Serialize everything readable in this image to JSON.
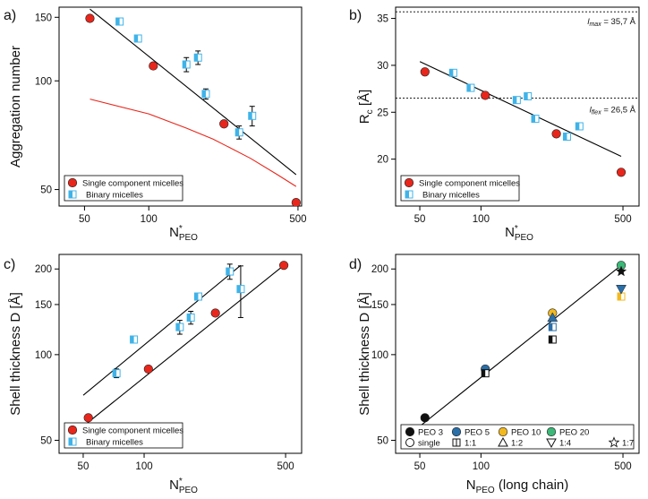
{
  "colors": {
    "single": "#e8261b",
    "binary": "#3fb3e8",
    "binary_light": "#cde9f7",
    "model": "#e8261b",
    "peo3": "#111111",
    "peo5": "#2a6fa8",
    "peo10": "#f2b91f",
    "peo20": "#3cb878"
  },
  "chart_data": [
    {
      "id": "a",
      "panel_label": "a)",
      "type": "scatter",
      "xlabel": "N",
      "xlabel_sup": "*",
      "xlabel_sub": "PEO",
      "ylabel": "Aggregation number",
      "xscale": "log",
      "yscale": "log",
      "xlim": [
        38,
        520
      ],
      "ylim": [
        45,
        160
      ],
      "xticks": [
        50,
        100,
        500
      ],
      "yticks": [
        50,
        100,
        150
      ],
      "legend_position": "lower-left",
      "legend": [
        "Single component micelles",
        "Binary micelles"
      ],
      "series": [
        {
          "name": "Single component micelles",
          "marker": "circle",
          "points": [
            [
              53,
              149
            ],
            [
              105,
              110
            ],
            [
              225,
              76
            ],
            [
              490,
              46
            ]
          ]
        },
        {
          "name": "Binary micelles",
          "marker": "half-square",
          "points": [
            [
              73,
              146,
              2.5
            ],
            [
              89,
              131,
              2.5
            ],
            [
              150,
              111,
              5
            ],
            [
              170,
              116,
              5
            ],
            [
              185,
              92,
              3
            ],
            [
              265,
              72,
              3
            ],
            [
              305,
              80,
              5
            ]
          ]
        }
      ],
      "lines": [
        {
          "name": "fit",
          "style": "black",
          "points": [
            [
              53,
              158
            ],
            [
              490,
              55
            ]
          ]
        },
        {
          "name": "model",
          "style": "red",
          "points": [
            [
              53,
              89
            ],
            [
              100,
              81
            ],
            [
              150,
              74
            ],
            [
              200,
              69
            ],
            [
              300,
              61
            ],
            [
              400,
              55
            ],
            [
              490,
              51
            ]
          ]
        }
      ]
    },
    {
      "id": "b",
      "panel_label": "b)",
      "type": "scatter",
      "xlabel": "N",
      "xlabel_sup": "*",
      "xlabel_sub": "PEO",
      "ylabel": "R",
      "ylabel_sub": "c",
      "ylabel_suffix": " [Å]",
      "xscale": "log",
      "yscale": "linear",
      "xlim": [
        38,
        600
      ],
      "ylim": [
        15,
        36.2
      ],
      "xticks": [
        50,
        100,
        500
      ],
      "yticks": [
        20,
        25,
        30,
        35
      ],
      "legend_position": "lower-left",
      "legend": [
        "Single component micelles",
        "Binary micelles"
      ],
      "series": [
        {
          "name": "Single component micelles",
          "marker": "circle",
          "points": [
            [
              53,
              29.3
            ],
            [
              105,
              26.8
            ],
            [
              235,
              22.7
            ],
            [
              490,
              18.6
            ]
          ]
        },
        {
          "name": "Binary micelles",
          "marker": "half-square",
          "points": [
            [
              73,
              29.2
            ],
            [
              89,
              27.6
            ],
            [
              150,
              26.3
            ],
            [
              170,
              26.7
            ],
            [
              185,
              24.3
            ],
            [
              265,
              22.4
            ],
            [
              305,
              23.5
            ]
          ]
        }
      ],
      "lines": [
        {
          "name": "fit",
          "style": "black",
          "points": [
            [
              50,
              30.4
            ],
            [
              490,
              20.3
            ]
          ]
        }
      ],
      "hlines": [
        {
          "y": 35.7,
          "label_main": "l",
          "label_sub": "max",
          "label_value": " = 35,7 Å",
          "label_side": "top"
        },
        {
          "y": 26.5,
          "label_main": "l",
          "label_sub": "flex",
          "label_value": " = 26,5 Å",
          "label_side": "bottom"
        }
      ]
    },
    {
      "id": "c",
      "panel_label": "c)",
      "type": "scatter",
      "xlabel": "N",
      "xlabel_sup": "*",
      "xlabel_sub": "PEO",
      "ylabel": "Shell thickness D [Å]",
      "xscale": "log",
      "yscale": "log",
      "xlim": [
        38,
        600
      ],
      "ylim": [
        45,
        225
      ],
      "xticks": [
        50,
        100,
        500
      ],
      "yticks": [
        50,
        100,
        150,
        200
      ],
      "legend_position": "lower-left",
      "legend": [
        "Single component micelles",
        "Binary micelles"
      ],
      "series": [
        {
          "name": "Single component micelles",
          "marker": "circle",
          "points": [
            [
              53,
              60
            ],
            [
              105,
              89
            ],
            [
              225,
              140
            ],
            [
              490,
              206
            ]
          ]
        },
        {
          "name": "Binary micelles",
          "marker": "half-square",
          "points": [
            [
              73,
              86,
              3
            ],
            [
              89,
              113,
              2
            ],
            [
              150,
              125,
              7
            ],
            [
              170,
              135,
              7
            ],
            [
              185,
              160,
              4
            ],
            [
              265,
              196,
              12
            ],
            [
              300,
              170,
              35
            ]
          ]
        }
      ],
      "lines": [
        {
          "name": "fit-single",
          "style": "black",
          "points": [
            [
              50,
              56
            ],
            [
              490,
              206
            ]
          ]
        },
        {
          "name": "fit-binary",
          "style": "black",
          "points": [
            [
              50,
              72
            ],
            [
              300,
              206
            ]
          ]
        }
      ]
    },
    {
      "id": "d",
      "panel_label": "d)",
      "type": "scatter",
      "xlabel": "N",
      "xlabel_sub": "PEO",
      "xlabel_suffix": " (long chain)",
      "ylabel": "Shell thickness D [Å]",
      "xscale": "log",
      "yscale": "log",
      "xlim": [
        38,
        600
      ],
      "ylim": [
        45,
        225
      ],
      "xticks": [
        50,
        100,
        500
      ],
      "yticks": [
        50,
        100,
        150,
        200
      ],
      "legend_position": "lower-right",
      "legend_colors": [
        "PEO 3",
        "PEO 5",
        "PEO 10",
        "PEO 20"
      ],
      "legend_shapes": [
        "single",
        "1:1",
        "1:2",
        "1:4",
        "1:7"
      ],
      "series": [
        {
          "name": "single",
          "marker": "circle",
          "points": [
            [
              53,
              60,
              "peo3"
            ],
            [
              105,
              89,
              "peo5"
            ],
            [
              225,
              140,
              "peo10"
            ],
            [
              490,
              206,
              "peo20"
            ]
          ]
        },
        {
          "name": "1:1",
          "marker": "half-square",
          "points": [
            [
              105,
              86,
              "peo3"
            ],
            [
              225,
              113,
              "peo3"
            ],
            [
              225,
              125,
              "peo5"
            ],
            [
              490,
              160,
              "peo10"
            ]
          ]
        },
        {
          "name": "1:2",
          "marker": "triangle-up",
          "points": [
            [
              225,
              135,
              "peo5"
            ]
          ]
        },
        {
          "name": "1:4",
          "marker": "triangle-down",
          "points": [
            [
              490,
              170,
              "peo5"
            ]
          ]
        },
        {
          "name": "1:7",
          "marker": "star",
          "points": [
            [
              490,
              196,
              "peo3"
            ]
          ]
        }
      ],
      "lines": [
        {
          "name": "fit",
          "style": "black",
          "points": [
            [
              50,
              56
            ],
            [
              490,
              206
            ]
          ]
        }
      ]
    }
  ]
}
